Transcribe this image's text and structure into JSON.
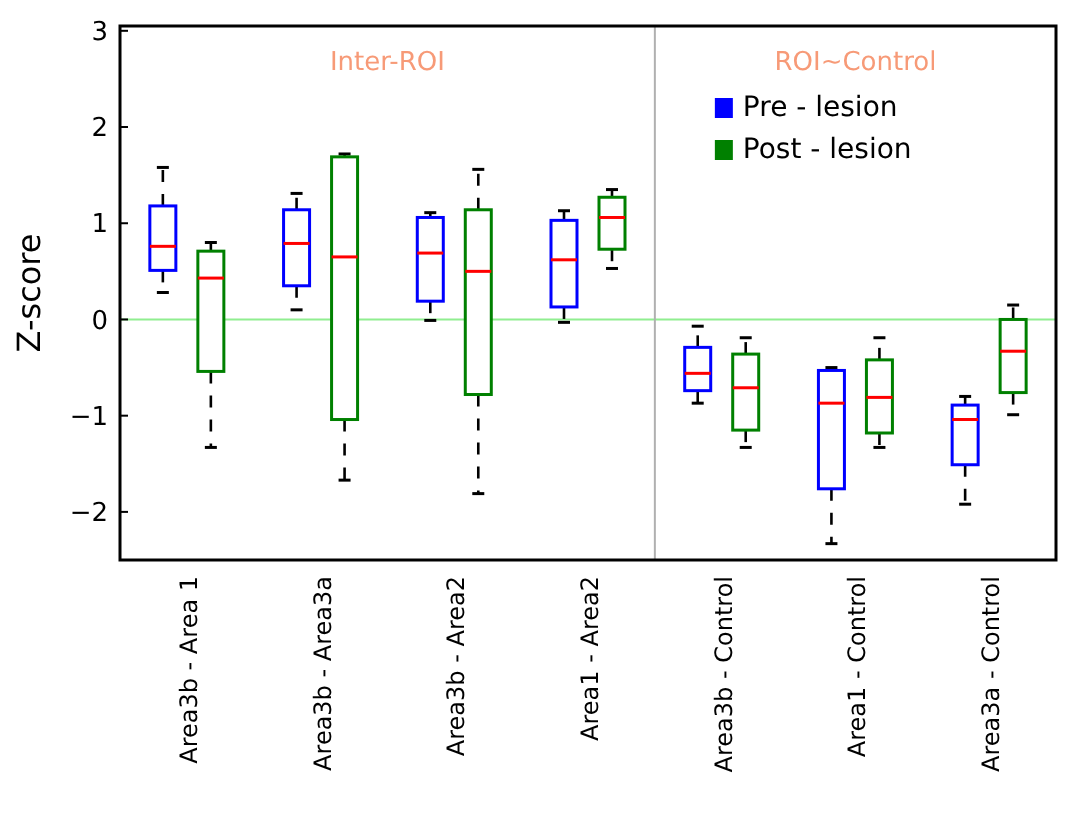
{
  "chart_data": {
    "type": "box",
    "ylabel": "Z-score",
    "categories": [
      "Area3b - Area 1",
      "Area3b - Area3a",
      "Area3b - Area2",
      "Area1 - Area2",
      "Area3b - Control",
      "Area1 - Control",
      "Area3a - Control"
    ],
    "series": [
      {
        "name": "Pre - lesion",
        "color": "#0000ff",
        "boxes": [
          {
            "low": 0.28,
            "q1": 0.51,
            "median": 0.76,
            "q3": 1.18,
            "high": 1.58
          },
          {
            "low": 0.1,
            "q1": 0.35,
            "median": 0.79,
            "q3": 1.14,
            "high": 1.31
          },
          {
            "low": -0.01,
            "q1": 0.19,
            "median": 0.69,
            "q3": 1.06,
            "high": 1.11
          },
          {
            "low": -0.03,
            "q1": 0.13,
            "median": 0.62,
            "q3": 1.03,
            "high": 1.13
          },
          {
            "low": -0.87,
            "q1": -0.74,
            "median": -0.56,
            "q3": -0.29,
            "high": -0.07
          },
          {
            "low": -2.33,
            "q1": -1.76,
            "median": -0.87,
            "q3": -0.53,
            "high": -0.5
          },
          {
            "low": -1.92,
            "q1": -1.51,
            "median": -1.04,
            "q3": -0.89,
            "high": -0.8
          }
        ]
      },
      {
        "name": "Post - lesion",
        "color": "#008000",
        "boxes": [
          {
            "low": -1.33,
            "q1": -0.54,
            "median": 0.43,
            "q3": 0.71,
            "high": 0.8
          },
          {
            "low": -1.67,
            "q1": -1.04,
            "median": 0.65,
            "q3": 1.69,
            "high": 1.72
          },
          {
            "low": -1.81,
            "q1": -0.78,
            "median": 0.5,
            "q3": 1.14,
            "high": 1.56
          },
          {
            "low": 0.53,
            "q1": 0.73,
            "median": 1.06,
            "q3": 1.27,
            "high": 1.35
          },
          {
            "low": -1.33,
            "q1": -1.15,
            "median": -0.71,
            "q3": -0.36,
            "high": -0.19
          },
          {
            "low": -1.33,
            "q1": -1.18,
            "median": -0.81,
            "q3": -0.42,
            "high": -0.19
          },
          {
            "low": -0.99,
            "q1": -0.76,
            "median": -0.33,
            "q3": 0,
            "high": 0.15
          }
        ]
      }
    ],
    "ylim": [
      -2.5,
      3.05
    ],
    "yticks": [
      {
        "value": -2,
        "label": "−2"
      },
      {
        "value": -1,
        "label": "−1"
      },
      0,
      1,
      2,
      3
    ],
    "ref_lines": [
      {
        "axis": "y",
        "value": 0,
        "color": "#90ee90"
      }
    ],
    "annotations": [
      "Inter-ROI",
      "ROI~Control"
    ],
    "legend": "top right",
    "grid": false
  }
}
